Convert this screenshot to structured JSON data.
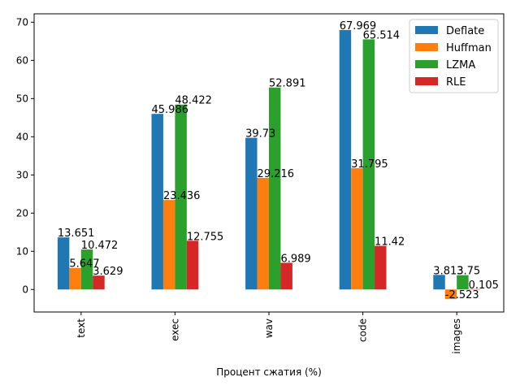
{
  "chart_data": {
    "type": "bar",
    "categories": [
      "text",
      "exec",
      "wav",
      "code",
      "images"
    ],
    "series": [
      {
        "name": "Deflate",
        "color": "#1f77b4",
        "values": [
          13.651,
          45.986,
          39.73,
          67.969,
          3.813
        ]
      },
      {
        "name": "Huffman",
        "color": "#ff7f0e",
        "values": [
          5.647,
          23.436,
          29.216,
          31.795,
          -2.523
        ]
      },
      {
        "name": "LZMA",
        "color": "#2ca02c",
        "values": [
          10.472,
          48.422,
          52.891,
          65.514,
          3.75
        ]
      },
      {
        "name": "RLE",
        "color": "#d62728",
        "values": [
          3.629,
          12.755,
          6.989,
          11.42,
          0.105
        ]
      }
    ],
    "xlabel": "Процент сжатия (%)",
    "ylabel": "",
    "ylim": [
      -5.9,
      72.2
    ],
    "yticks": [
      0,
      10,
      20,
      30,
      40,
      50,
      60,
      70
    ],
    "legend_position": "top-right",
    "grid": false,
    "x_tick_rotation": "vertical"
  }
}
